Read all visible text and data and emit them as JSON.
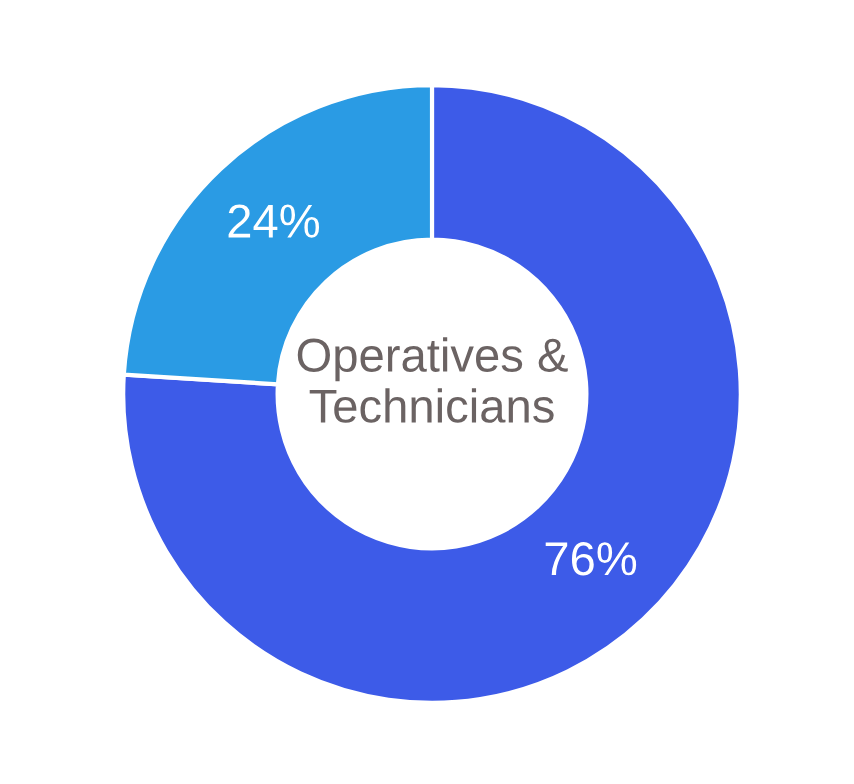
{
  "chart_data": {
    "type": "donut",
    "title": "Operatives &\nTechnicians",
    "categories": [
      null,
      null
    ],
    "values": [
      76,
      24
    ],
    "colors": [
      "#3d5be8",
      "#2a9be4"
    ],
    "value_labels": [
      "76%",
      "24%"
    ],
    "legend": false
  }
}
